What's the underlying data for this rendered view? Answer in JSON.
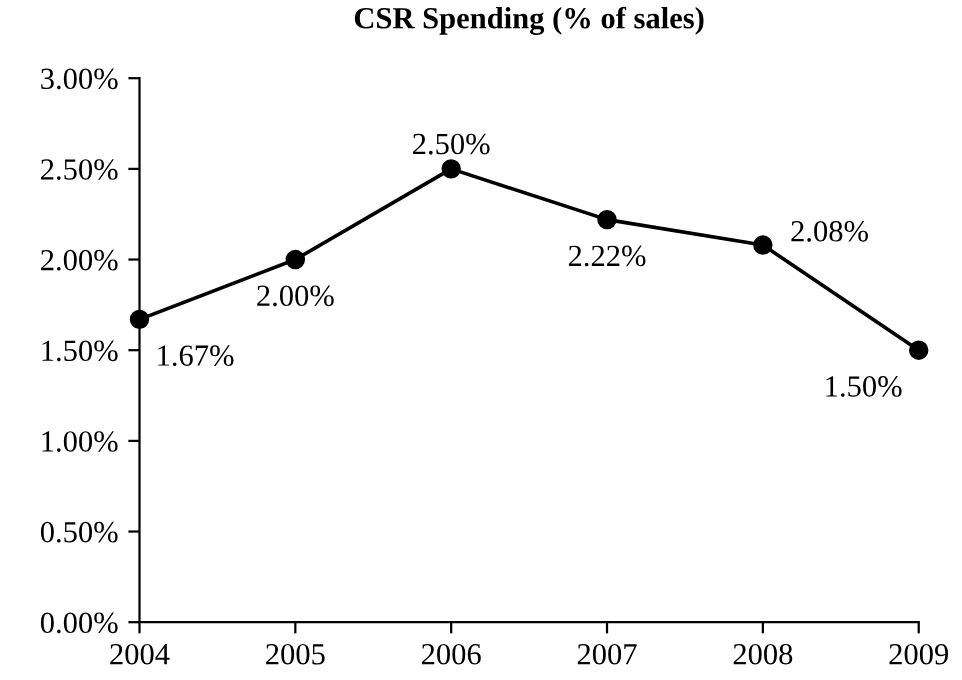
{
  "chart_data": {
    "type": "line",
    "title": "CSR Spending (% of sales)",
    "x": [
      2004,
      2005,
      2006,
      2007,
      2008,
      2009
    ],
    "series": [
      {
        "color": "#000000",
        "values": [
          1.67,
          2.0,
          2.5,
          2.22,
          2.08,
          1.5
        ],
        "value_labels": [
          "1.67%",
          "2.00%",
          "2.50%",
          "2.22%",
          "2.08%",
          "1.50%"
        ]
      }
    ],
    "xlim": [
      2004,
      2009
    ],
    "xticks": [
      2004,
      2005,
      2006,
      2007,
      2008,
      2009
    ],
    "ylim": [
      0,
      3
    ],
    "yticks": [
      {
        "value": 0,
        "label": "0.00%"
      },
      {
        "value": 0.5,
        "label": "0.50%"
      },
      {
        "value": 1,
        "label": "1.00%"
      },
      {
        "value": 1.5,
        "label": "1.50%"
      },
      {
        "value": 2,
        "label": "2.00%"
      },
      {
        "value": 2.5,
        "label": "2.50%"
      },
      {
        "value": 3,
        "label": "3.00%"
      }
    ],
    "marker": "circle",
    "line_style": "solid"
  }
}
